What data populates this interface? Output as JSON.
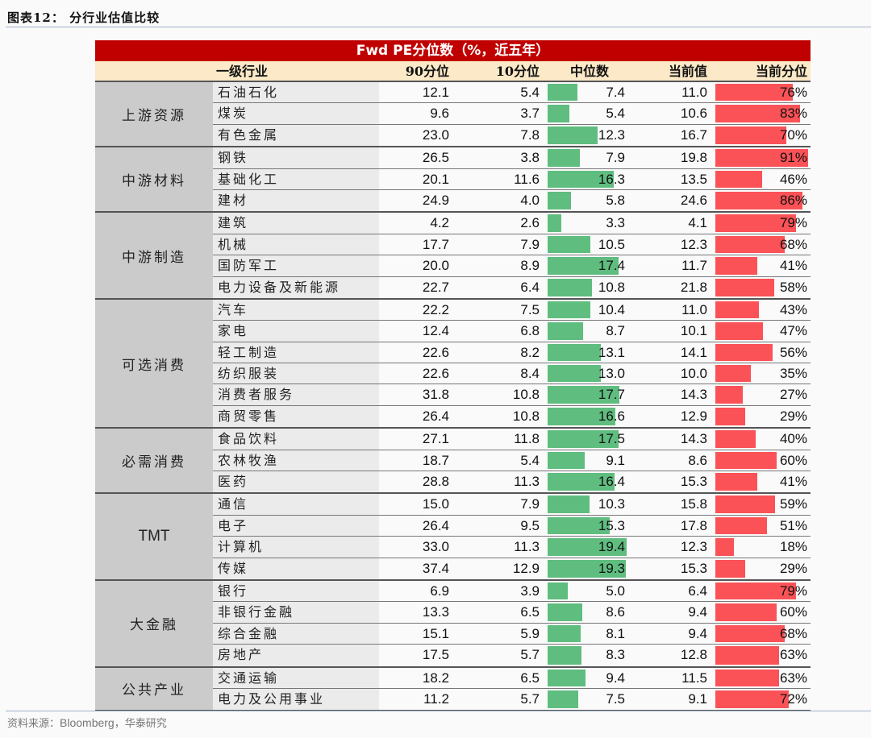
{
  "figure_title": "图表12：  分行业估值比较",
  "source": {
    "prefix": "资料来源：",
    "en": "Bloomberg",
    "suffix": "，华泰研究"
  },
  "table": {
    "title": "Fwd PE分位数（%，近五年）",
    "headers": {
      "industry": "一级行业",
      "p90": "90分位",
      "p10": "10分位",
      "median": "中位数",
      "current": "当前值",
      "current_pct": "当前分位"
    }
  },
  "colors": {
    "title_bar": "#c00000",
    "header_bg": "#fbe9c7",
    "median_bar": "#5fbd7f",
    "pct_bar": "#fa5257",
    "group_bg": "#cbcbcb"
  },
  "chart_data": {
    "type": "table",
    "title": "Fwd PE分位数（%，近五年）",
    "columns": [
      "一级行业",
      "90分位",
      "10分位",
      "中位数",
      "当前值",
      "当前分位"
    ],
    "groups": [
      {
        "name": "上游资源",
        "rows": [
          {
            "industry": "石油石化",
            "p90": "12.1",
            "p10": "5.4",
            "median": "7.4",
            "current": "11.0",
            "pct": "76%"
          },
          {
            "industry": "煤炭",
            "p90": "9.6",
            "p10": "3.7",
            "median": "5.4",
            "current": "10.6",
            "pct": "83%"
          },
          {
            "industry": "有色金属",
            "p90": "23.0",
            "p10": "7.8",
            "median": "12.3",
            "current": "16.7",
            "pct": "70%"
          }
        ]
      },
      {
        "name": "中游材料",
        "rows": [
          {
            "industry": "钢铁",
            "p90": "26.5",
            "p10": "3.8",
            "median": "7.9",
            "current": "19.8",
            "pct": "91%"
          },
          {
            "industry": "基础化工",
            "p90": "20.1",
            "p10": "11.6",
            "median": "16.3",
            "current": "13.5",
            "pct": "46%"
          },
          {
            "industry": "建材",
            "p90": "24.9",
            "p10": "4.0",
            "median": "5.8",
            "current": "24.6",
            "pct": "86%"
          }
        ]
      },
      {
        "name": "中游制造",
        "rows": [
          {
            "industry": "建筑",
            "p90": "4.2",
            "p10": "2.6",
            "median": "3.3",
            "current": "4.1",
            "pct": "79%"
          },
          {
            "industry": "机械",
            "p90": "17.7",
            "p10": "7.9",
            "median": "10.5",
            "current": "12.3",
            "pct": "68%"
          },
          {
            "industry": "国防军工",
            "p90": "20.0",
            "p10": "8.9",
            "median": "17.4",
            "current": "11.7",
            "pct": "41%"
          },
          {
            "industry": "电力设备及新能源",
            "p90": "22.7",
            "p10": "6.4",
            "median": "10.8",
            "current": "21.8",
            "pct": "58%"
          }
        ]
      },
      {
        "name": "可选消费",
        "rows": [
          {
            "industry": "汽车",
            "p90": "22.2",
            "p10": "7.5",
            "median": "10.4",
            "current": "11.0",
            "pct": "43%"
          },
          {
            "industry": "家电",
            "p90": "12.4",
            "p10": "6.8",
            "median": "8.7",
            "current": "10.1",
            "pct": "47%"
          },
          {
            "industry": "轻工制造",
            "p90": "22.6",
            "p10": "8.2",
            "median": "13.1",
            "current": "14.1",
            "pct": "56%"
          },
          {
            "industry": "纺织服装",
            "p90": "22.6",
            "p10": "8.4",
            "median": "13.0",
            "current": "10.0",
            "pct": "35%"
          },
          {
            "industry": "消费者服务",
            "p90": "31.8",
            "p10": "10.8",
            "median": "17.7",
            "current": "14.3",
            "pct": "27%"
          },
          {
            "industry": "商贸零售",
            "p90": "26.4",
            "p10": "10.8",
            "median": "16.6",
            "current": "12.9",
            "pct": "29%"
          }
        ]
      },
      {
        "name": "必需消费",
        "rows": [
          {
            "industry": "食品饮料",
            "p90": "27.1",
            "p10": "11.8",
            "median": "17.5",
            "current": "14.3",
            "pct": "40%"
          },
          {
            "industry": "农林牧渔",
            "p90": "18.7",
            "p10": "5.4",
            "median": "9.1",
            "current": "8.6",
            "pct": "60%"
          },
          {
            "industry": "医药",
            "p90": "28.8",
            "p10": "11.3",
            "median": "16.4",
            "current": "15.3",
            "pct": "41%"
          }
        ]
      },
      {
        "name": "TMT",
        "rows": [
          {
            "industry": "通信",
            "p90": "15.0",
            "p10": "7.9",
            "median": "10.3",
            "current": "15.8",
            "pct": "59%"
          },
          {
            "industry": "电子",
            "p90": "26.4",
            "p10": "9.5",
            "median": "15.3",
            "current": "17.8",
            "pct": "51%"
          },
          {
            "industry": "计算机",
            "p90": "33.0",
            "p10": "11.3",
            "median": "19.4",
            "current": "12.3",
            "pct": "18%"
          },
          {
            "industry": "传媒",
            "p90": "37.4",
            "p10": "12.9",
            "median": "19.3",
            "current": "15.3",
            "pct": "29%"
          }
        ]
      },
      {
        "name": "大金融",
        "rows": [
          {
            "industry": "银行",
            "p90": "6.9",
            "p10": "3.9",
            "median": "5.0",
            "current": "6.4",
            "pct": "79%"
          },
          {
            "industry": "非银行金融",
            "p90": "13.3",
            "p10": "6.5",
            "median": "8.6",
            "current": "9.4",
            "pct": "60%"
          },
          {
            "industry": "综合金融",
            "p90": "15.1",
            "p10": "5.9",
            "median": "8.1",
            "current": "9.4",
            "pct": "68%"
          },
          {
            "industry": "房地产",
            "p90": "17.5",
            "p10": "5.7",
            "median": "8.3",
            "current": "12.8",
            "pct": "63%"
          }
        ]
      },
      {
        "name": "公共产业",
        "rows": [
          {
            "industry": "交通运输",
            "p90": "18.2",
            "p10": "6.5",
            "median": "9.4",
            "current": "11.5",
            "pct": "63%"
          },
          {
            "industry": "电力及公用事业",
            "p90": "11.2",
            "p10": "5.7",
            "median": "7.5",
            "current": "9.1",
            "pct": "72%"
          }
        ]
      }
    ]
  }
}
